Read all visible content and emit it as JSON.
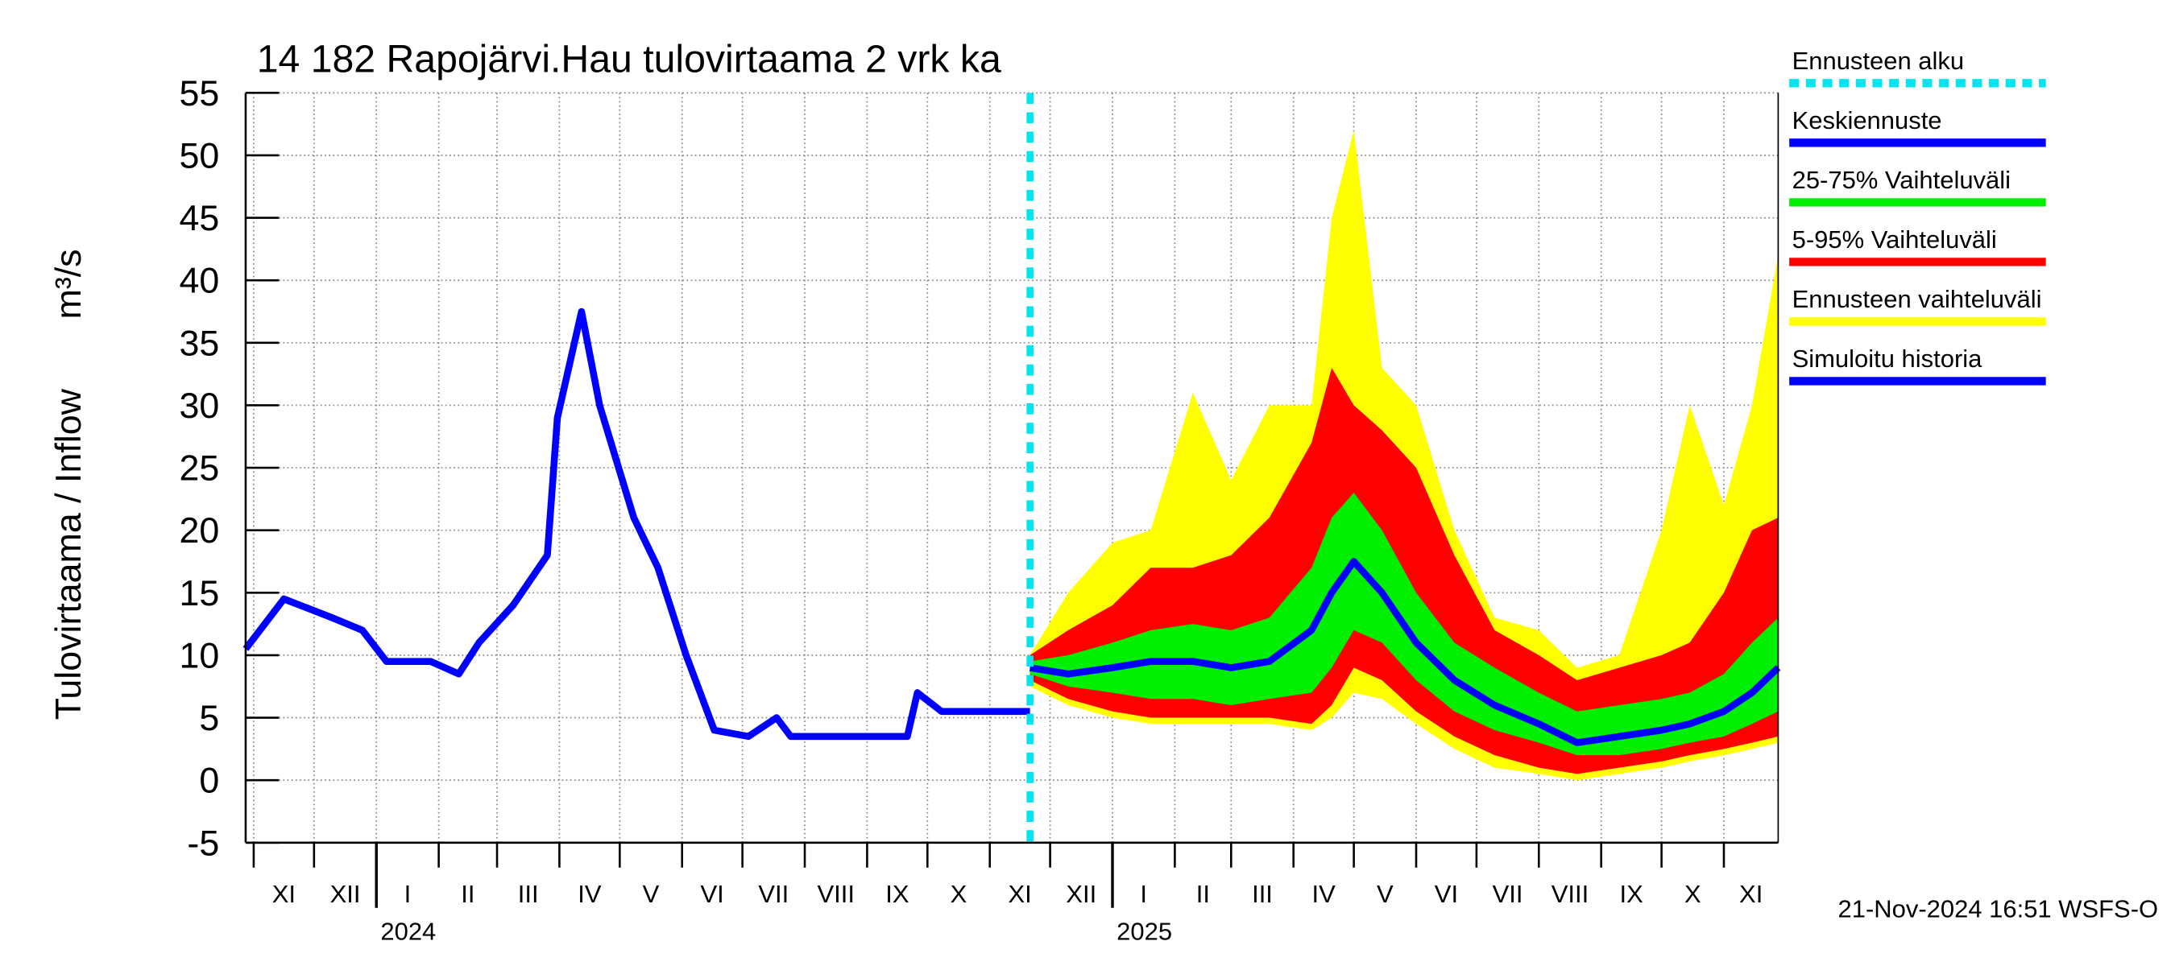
{
  "chart_data": {
    "type": "line",
    "title": "14 182 Rapojärvi.Hau tulovirtaama 2 vrk ka",
    "ylabel": "Tulovirtaama / Inflow",
    "yunit": "m³/s",
    "footer": "21-Nov-2024 16:51 WSFS-O",
    "xlim": [
      "2023-10-28",
      "2025-11-28"
    ],
    "ylim": [
      -5,
      55
    ],
    "yticks": [
      -5,
      0,
      5,
      10,
      15,
      20,
      25,
      30,
      35,
      40,
      45,
      50,
      55
    ],
    "grid": true,
    "month_ticks": [
      {
        "value": "2023-11-01",
        "label": "XI"
      },
      {
        "value": "2023-12-01",
        "label": "XII"
      },
      {
        "value": "2024-01-01",
        "label": "I"
      },
      {
        "value": "2024-02-01",
        "label": "II"
      },
      {
        "value": "2024-03-01",
        "label": "III"
      },
      {
        "value": "2024-04-01",
        "label": "IV"
      },
      {
        "value": "2024-05-01",
        "label": "V"
      },
      {
        "value": "2024-06-01",
        "label": "VI"
      },
      {
        "value": "2024-07-01",
        "label": "VII"
      },
      {
        "value": "2024-08-01",
        "label": "VIII"
      },
      {
        "value": "2024-09-01",
        "label": "IX"
      },
      {
        "value": "2024-10-01",
        "label": "X"
      },
      {
        "value": "2024-11-01",
        "label": "XI"
      },
      {
        "value": "2024-12-01",
        "label": "XII"
      },
      {
        "value": "2025-01-01",
        "label": "I"
      },
      {
        "value": "2025-02-01",
        "label": "II"
      },
      {
        "value": "2025-03-01",
        "label": "III"
      },
      {
        "value": "2025-04-01",
        "label": "IV"
      },
      {
        "value": "2025-05-01",
        "label": "V"
      },
      {
        "value": "2025-06-01",
        "label": "VI"
      },
      {
        "value": "2025-07-01",
        "label": "VII"
      },
      {
        "value": "2025-08-01",
        "label": "VIII"
      },
      {
        "value": "2025-09-01",
        "label": "IX"
      },
      {
        "value": "2025-10-01",
        "label": "X"
      },
      {
        "value": "2025-11-01",
        "label": "XI"
      }
    ],
    "year_ticks": [
      {
        "value": "2024-01-01",
        "label": "2024"
      },
      {
        "value": "2025-01-01",
        "label": "2025"
      }
    ],
    "forecast_start": {
      "name": "Ennusteen alku",
      "x": "2024-11-21",
      "color": "#00e5ee"
    },
    "history": {
      "name": "Simuloitu historia",
      "color": "#0000ff",
      "x": [
        "2023-10-28",
        "2023-11-16",
        "2023-12-10",
        "2023-12-25",
        "2024-01-06",
        "2024-01-28",
        "2024-02-11",
        "2024-02-21",
        "2024-03-09",
        "2024-03-26",
        "2024-03-31",
        "2024-04-12",
        "2024-04-21",
        "2024-05-08",
        "2024-05-20",
        "2024-06-03",
        "2024-06-17",
        "2024-07-04",
        "2024-07-18",
        "2024-07-25",
        "2024-08-28",
        "2024-09-21",
        "2024-09-26",
        "2024-10-08",
        "2024-11-21"
      ],
      "values": [
        10.5,
        14.5,
        13,
        12,
        9.5,
        9.5,
        8.5,
        11,
        14,
        18,
        29,
        37.5,
        30,
        21,
        17,
        10,
        4,
        3.5,
        5,
        3.5,
        3.5,
        3.5,
        7,
        5.5,
        5.5
      ]
    },
    "forecast": {
      "x": [
        "2024-11-21",
        "2024-12-10",
        "2025-01-01",
        "2025-01-20",
        "2025-02-10",
        "2025-03-01",
        "2025-03-20",
        "2025-04-10",
        "2025-04-20",
        "2025-05-01",
        "2025-05-15",
        "2025-06-01",
        "2025-06-20",
        "2025-07-10",
        "2025-08-01",
        "2025-08-20",
        "2025-09-10",
        "2025-10-01",
        "2025-10-15",
        "2025-11-01",
        "2025-11-15",
        "2025-11-28"
      ],
      "median": {
        "name": "Keskiennuste",
        "color": "#0000ff",
        "values": [
          9,
          8.5,
          9,
          9.5,
          9.5,
          9,
          9.5,
          12,
          15,
          17.5,
          15,
          11,
          8,
          6,
          4.5,
          3,
          3.5,
          4,
          4.5,
          5.5,
          7,
          9
        ]
      },
      "bands": [
        {
          "name": "Ennusteen vaihteluväli",
          "color": "#ffff00",
          "lower": [
            7.5,
            6,
            5,
            4.5,
            4.5,
            4.5,
            4.5,
            4,
            5,
            7,
            6.5,
            4.5,
            2.5,
            1,
            0.5,
            0,
            0.5,
            1,
            1.5,
            2,
            2.5,
            3
          ],
          "upper": [
            10,
            15,
            19,
            20,
            31,
            24,
            30,
            30,
            45,
            52,
            33,
            30,
            20,
            13,
            12,
            9,
            10,
            20,
            30,
            22,
            30,
            42
          ]
        },
        {
          "name": "5-95% Vaihteluväli",
          "color": "#ff0000",
          "lower": [
            8,
            6.5,
            5.5,
            5,
            5,
            5,
            5,
            4.5,
            6,
            9,
            8,
            5.5,
            3.5,
            2,
            1,
            0.5,
            1,
            1.5,
            2,
            2.5,
            3,
            3.5
          ],
          "upper": [
            10,
            12,
            14,
            17,
            17,
            18,
            21,
            27,
            33,
            30,
            28,
            25,
            18,
            12,
            10,
            8,
            9,
            10,
            11,
            15,
            20,
            21
          ]
        },
        {
          "name": "25-75% Vaihteluväli",
          "color": "#00ee00",
          "lower": [
            8.5,
            7.5,
            7,
            6.5,
            6.5,
            6,
            6.5,
            7,
            9,
            12,
            11,
            8,
            5.5,
            4,
            3,
            2,
            2,
            2.5,
            3,
            3.5,
            4.5,
            5.5
          ],
          "upper": [
            9.5,
            10,
            11,
            12,
            12.5,
            12,
            13,
            17,
            21,
            23,
            20,
            15,
            11,
            9,
            7,
            5.5,
            6,
            6.5,
            7,
            8.5,
            11,
            13
          ]
        }
      ]
    }
  }
}
